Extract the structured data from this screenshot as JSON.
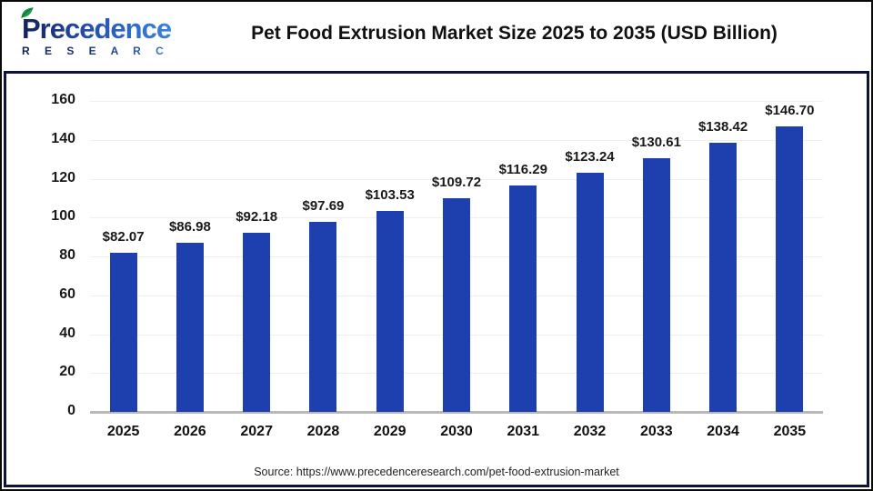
{
  "logo": {
    "name": "Precedence",
    "sub": "R E S E A R C H"
  },
  "header": {
    "title": "Pet Food Extrusion Market Size 2025 to 2035 (USD Billion)"
  },
  "source": {
    "text": "Source: https://www.precedenceresearch.com/pet-food-extrusion-market"
  },
  "colors": {
    "bar": "#1d40ae",
    "box_border": "#0d1238",
    "gridline": "#efefef",
    "axis_line": "#b8b8b8",
    "title_text": "#111111",
    "logo_navy": "#122257",
    "logo_blue": "#3f85df"
  },
  "chart_data": {
    "type": "bar",
    "title": "Pet Food Extrusion Market Size 2025 to 2035 (USD Billion)",
    "categories": [
      "2025",
      "2026",
      "2027",
      "2028",
      "2029",
      "2030",
      "2031",
      "2032",
      "2033",
      "2034",
      "2035"
    ],
    "values": [
      82.07,
      86.98,
      92.18,
      97.69,
      103.53,
      109.72,
      116.29,
      123.24,
      130.61,
      138.42,
      146.7
    ],
    "bar_labels": [
      "$82.07",
      "$86.98",
      "$92.18",
      "$97.69",
      "$103.53",
      "$109.72",
      "$116.29",
      "$123.24",
      "$130.61",
      "$138.42",
      "$146.70"
    ],
    "xlabel": "",
    "ylabel": "",
    "ylim": [
      0,
      160
    ],
    "yticks": [
      0,
      20,
      40,
      60,
      80,
      100,
      120,
      140,
      160
    ],
    "grid": true,
    "legend": false,
    "bar_color": "#1d40ae"
  }
}
